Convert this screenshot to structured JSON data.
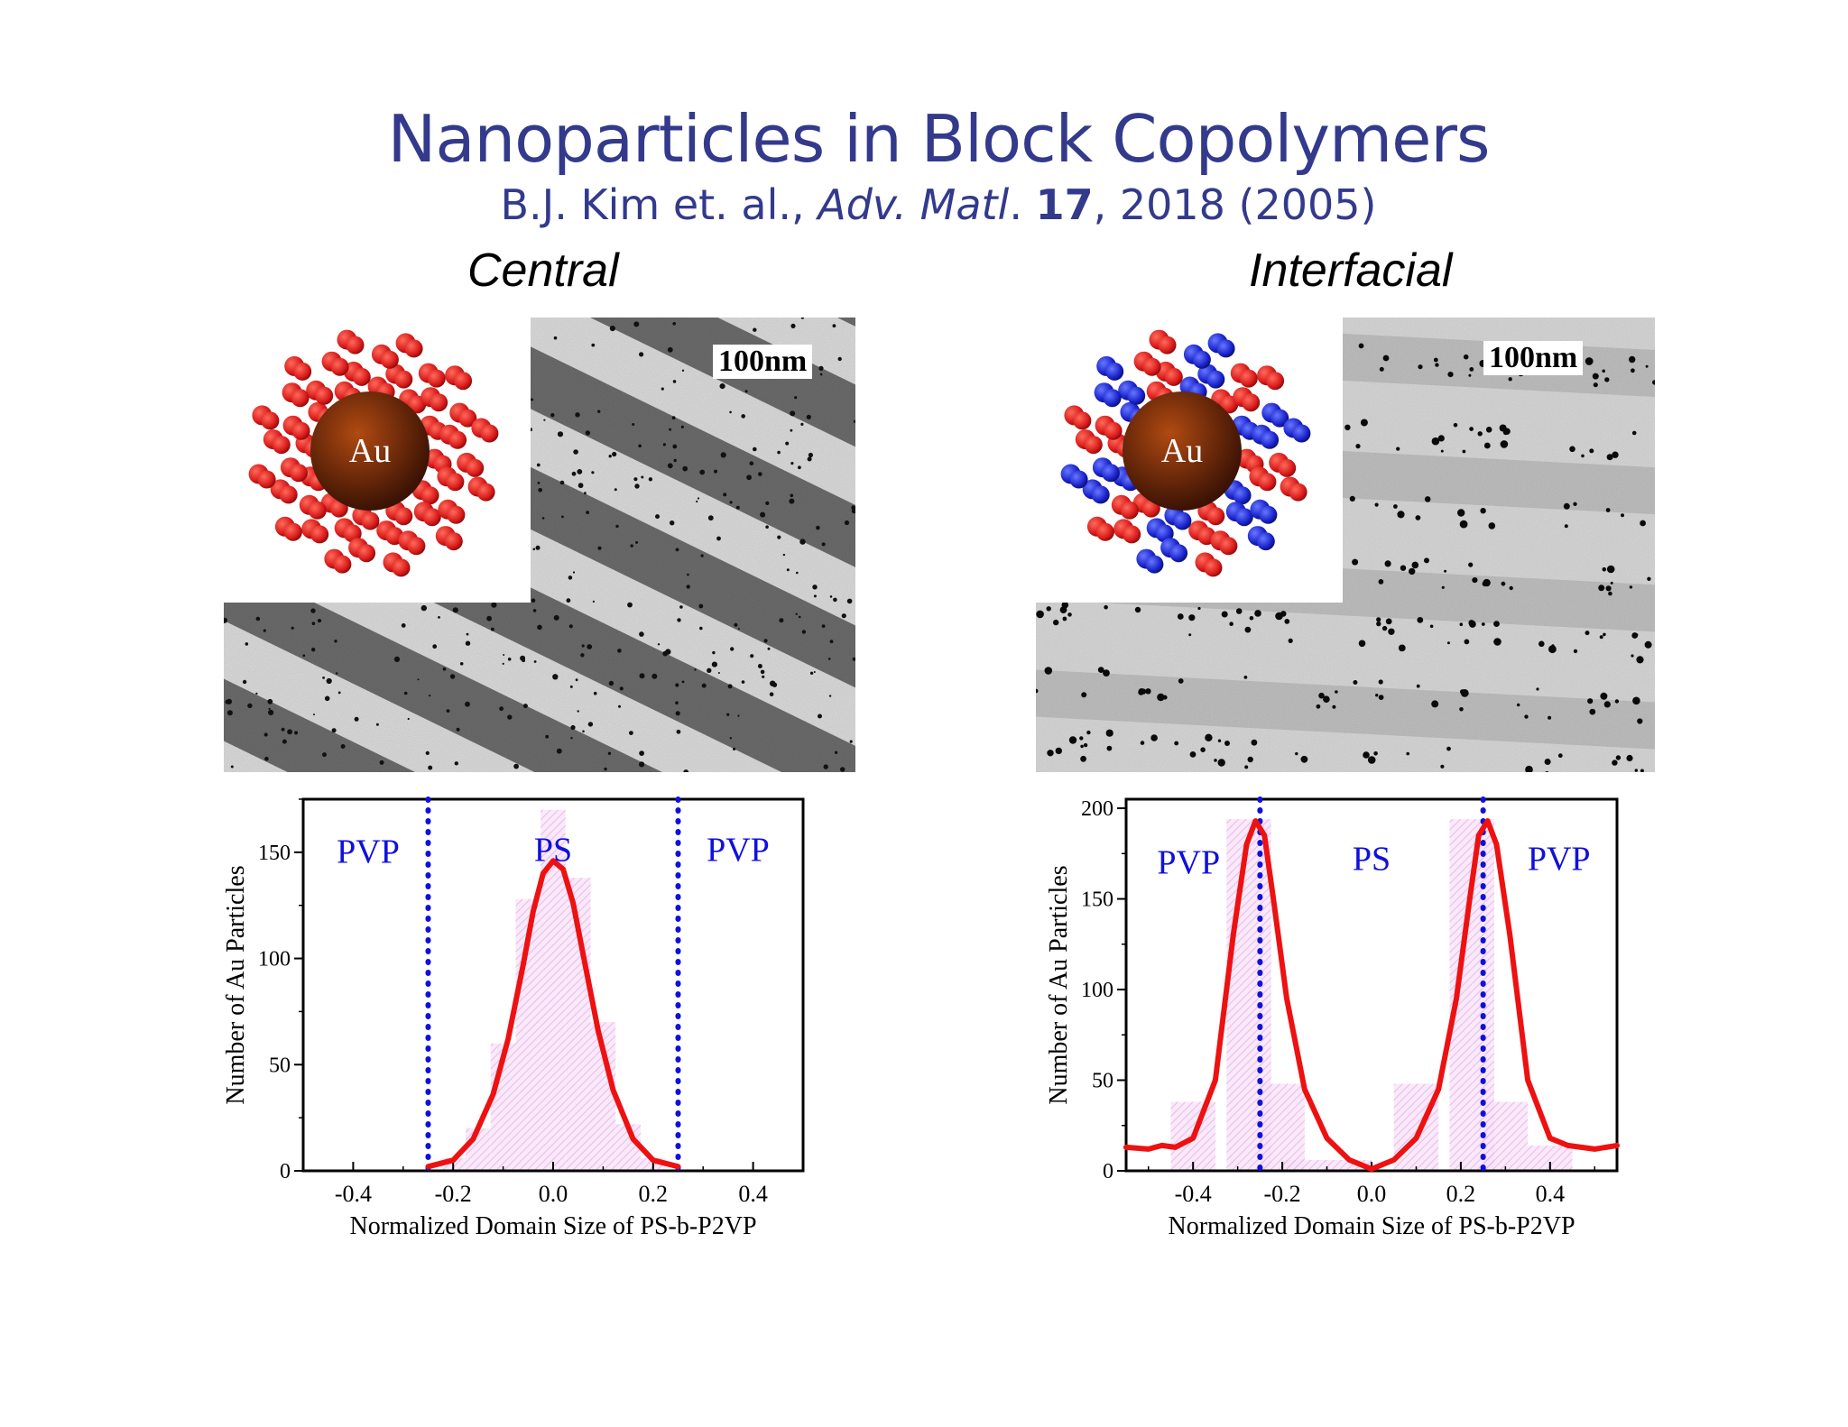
{
  "slide": {
    "title": "Nanoparticles in Block Copolymers",
    "citation": {
      "authors": "B.J. Kim et. al.,",
      "journal": "Adv. Matl",
      "volume": "17",
      "rest": ", 2018 (2005)"
    }
  },
  "panels": {
    "left_title": "Central",
    "right_title": "Interfacial",
    "scale_bar": "100nm",
    "particle_core": "Au"
  },
  "colors": {
    "title": "#333a8c",
    "curve": "#ee1111",
    "divider": "#1010dd",
    "region_label": "#1010dd",
    "histogram": "#e6a8e6",
    "ligand_red": "#e02222",
    "ligand_blue": "#1a22cc",
    "core": "#7a2a0a"
  },
  "chart_data": [
    {
      "type": "line",
      "xlabel": "Normalized Domain Size of PS-b-P2VP",
      "ylabel": "Number of  Au Particles",
      "xlim": [
        -0.5,
        0.5
      ],
      "ylim": [
        0,
        175
      ],
      "xticks": [
        "-0.4",
        "-0.2",
        "0.0",
        "0.2",
        "0.4"
      ],
      "xtick_values": [
        -0.4,
        -0.2,
        0.0,
        0.2,
        0.4
      ],
      "yticks": [
        "0",
        "50",
        "100",
        "150"
      ],
      "ytick_values": [
        0,
        50,
        100,
        150
      ],
      "region_labels": [
        "PVP",
        "PS",
        "PVP"
      ],
      "region_label_x": [
        -0.37,
        0.0,
        0.37
      ],
      "region_label_y": [
        145,
        146,
        146
      ],
      "dividers_x": [
        -0.25,
        0.25
      ],
      "histogram": {
        "x": [
          -0.2,
          -0.15,
          -0.1,
          -0.05,
          0.0,
          0.05,
          0.1,
          0.15,
          0.2
        ],
        "values": [
          6,
          20,
          60,
          128,
          170,
          138,
          70,
          22,
          6
        ]
      },
      "series": [
        {
          "x": [
            -0.25,
            -0.2,
            -0.16,
            -0.12,
            -0.09,
            -0.06,
            -0.04,
            -0.02,
            0.0,
            0.02,
            0.04,
            0.06,
            0.09,
            0.12,
            0.16,
            0.2,
            0.25
          ],
          "y": [
            2,
            5,
            15,
            36,
            62,
            97,
            122,
            140,
            146,
            142,
            126,
            102,
            66,
            38,
            15,
            5,
            2
          ]
        }
      ]
    },
    {
      "type": "line",
      "xlabel": "Normalized Domain Size of PS-b-P2VP",
      "ylabel": "Number of Au Particles",
      "xlim": [
        -0.55,
        0.55
      ],
      "ylim": [
        0,
        205
      ],
      "xticks": [
        "-0.4",
        "-0.2",
        "0.0",
        "0.2",
        "0.4"
      ],
      "xtick_values": [
        -0.4,
        -0.2,
        0.0,
        0.2,
        0.4
      ],
      "yticks": [
        "0",
        "50",
        "100",
        "150",
        "200"
      ],
      "ytick_values": [
        0,
        50,
        100,
        150,
        200
      ],
      "region_labels": [
        "PVP",
        "PS",
        "PVP"
      ],
      "region_label_x": [
        -0.41,
        0.0,
        0.42
      ],
      "region_label_y": [
        164,
        166,
        166
      ],
      "dividers_x": [
        -0.25,
        0.25
      ],
      "histogram": {
        "x": [
          -0.4,
          -0.3,
          -0.25,
          -0.2,
          -0.1,
          0.1,
          0.2,
          0.25,
          0.3,
          0.4
        ],
        "values": [
          38,
          194,
          194,
          48,
          6,
          48,
          194,
          194,
          38,
          14
        ]
      },
      "series": [
        {
          "x": [
            -0.55,
            -0.5,
            -0.47,
            -0.44,
            -0.4,
            -0.35,
            -0.31,
            -0.28,
            -0.26,
            -0.24,
            -0.22,
            -0.19,
            -0.15,
            -0.1,
            -0.05,
            0.0,
            0.05,
            0.1,
            0.15,
            0.19,
            0.22,
            0.24,
            0.26,
            0.28,
            0.31,
            0.35,
            0.4,
            0.44,
            0.47,
            0.5,
            0.55
          ],
          "y": [
            13,
            12,
            14,
            13,
            18,
            50,
            130,
            180,
            193,
            185,
            150,
            95,
            45,
            18,
            6,
            1,
            6,
            18,
            45,
            95,
            150,
            185,
            193,
            180,
            130,
            50,
            18,
            14,
            13,
            12,
            14
          ]
        }
      ]
    }
  ]
}
